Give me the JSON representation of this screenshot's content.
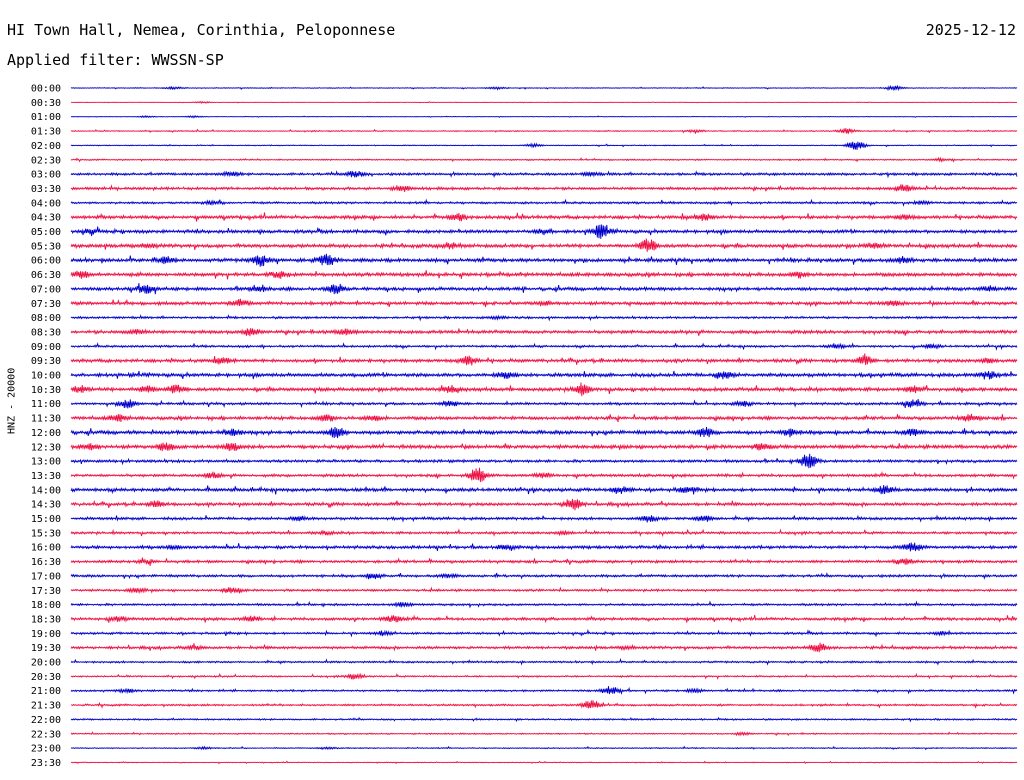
{
  "header": {
    "station": "HI Town Hall, Nemea, Corinthia, Peloponnese",
    "date": "2025-12-12",
    "filter": "Applied filter: WWSSN-SP"
  },
  "channel_label": "HNZ - 20000",
  "colors": {
    "even": "#0000cc",
    "odd": "#ee1144"
  },
  "chart_data": {
    "type": "line",
    "title": "HI Town Hall, Nemea, Corinthia, Peloponnese",
    "subtitle": "Applied filter: WWSSN-SP",
    "ylabel": "HNZ - 20000",
    "y_tick_labels": [
      "00:00",
      "00:30",
      "01:00",
      "01:30",
      "02:00",
      "02:30",
      "03:00",
      "03:30",
      "04:00",
      "04:30",
      "05:00",
      "05:30",
      "06:00",
      "06:30",
      "07:00",
      "07:30",
      "08:00",
      "08:30",
      "09:00",
      "09:30",
      "10:00",
      "10:30",
      "11:00",
      "11:30",
      "12:00",
      "12:30",
      "13:00",
      "13:30",
      "14:00",
      "14:30",
      "15:00",
      "15:30",
      "16:00",
      "16:30",
      "17:00",
      "17:30",
      "18:00",
      "18:30",
      "19:00",
      "19:30",
      "20:00",
      "20:30",
      "21:00",
      "21:30",
      "22:00",
      "22:30",
      "23:00",
      "23:30"
    ],
    "series_colors": [
      "#0000cc",
      "#ee1144"
    ],
    "traces": [
      {
        "label": "00:00",
        "noise": 0.3,
        "events": [
          [
            0.11,
            1.2
          ],
          [
            0.45,
            1.0
          ],
          [
            0.87,
            2.0
          ]
        ]
      },
      {
        "label": "00:30",
        "noise": 0.15,
        "events": [
          [
            0.14,
            0.8
          ]
        ]
      },
      {
        "label": "01:00",
        "noise": 0.2,
        "events": [
          [
            0.08,
            0.8
          ],
          [
            0.13,
            0.8
          ]
        ]
      },
      {
        "label": "01:30",
        "noise": 0.4,
        "events": [
          [
            0.66,
            1.2
          ],
          [
            0.82,
            2.5
          ]
        ]
      },
      {
        "label": "02:00",
        "noise": 0.35,
        "events": [
          [
            0.49,
            1.5
          ],
          [
            0.83,
            5.0
          ]
        ]
      },
      {
        "label": "02:30",
        "noise": 0.5,
        "events": [
          [
            0.92,
            1.2
          ]
        ]
      },
      {
        "label": "03:00",
        "noise": 0.9,
        "events": [
          [
            0.17,
            2.0
          ],
          [
            0.3,
            3.0
          ],
          [
            0.55,
            1.5
          ]
        ]
      },
      {
        "label": "03:30",
        "noise": 1.0,
        "events": [
          [
            0.35,
            2.5
          ],
          [
            0.88,
            3.5
          ]
        ]
      },
      {
        "label": "04:00",
        "noise": 0.8,
        "events": [
          [
            0.15,
            1.5
          ],
          [
            0.9,
            1.5
          ]
        ]
      },
      {
        "label": "04:30",
        "noise": 1.2,
        "events": [
          [
            0.41,
            3.0
          ],
          [
            0.67,
            3.0
          ],
          [
            0.88,
            2.0
          ]
        ]
      },
      {
        "label": "05:00",
        "noise": 1.2,
        "events": [
          [
            0.02,
            2.0
          ],
          [
            0.5,
            2.5
          ],
          [
            0.56,
            6.0
          ]
        ]
      },
      {
        "label": "05:30",
        "noise": 1.3,
        "events": [
          [
            0.08,
            2.0
          ],
          [
            0.4,
            2.5
          ],
          [
            0.61,
            6.0
          ],
          [
            0.85,
            2.0
          ]
        ]
      },
      {
        "label": "06:00",
        "noise": 1.3,
        "events": [
          [
            0.1,
            3.0
          ],
          [
            0.2,
            5.0
          ],
          [
            0.27,
            6.0
          ],
          [
            0.88,
            3.0
          ]
        ]
      },
      {
        "label": "06:30",
        "noise": 1.3,
        "events": [
          [
            0.01,
            3.0
          ],
          [
            0.22,
            3.0
          ],
          [
            0.77,
            2.5
          ]
        ]
      },
      {
        "label": "07:00",
        "noise": 1.2,
        "events": [
          [
            0.08,
            5.0
          ],
          [
            0.2,
            2.0
          ],
          [
            0.28,
            5.0
          ],
          [
            0.97,
            2.0
          ]
        ]
      },
      {
        "label": "07:30",
        "noise": 1.2,
        "events": [
          [
            0.18,
            3.5
          ],
          [
            0.5,
            1.5
          ],
          [
            0.87,
            2.0
          ]
        ]
      },
      {
        "label": "08:00",
        "noise": 0.8,
        "events": [
          [
            0.45,
            1.2
          ]
        ]
      },
      {
        "label": "08:30",
        "noise": 1.2,
        "events": [
          [
            0.07,
            2.0
          ],
          [
            0.19,
            3.0
          ],
          [
            0.29,
            2.5
          ]
        ]
      },
      {
        "label": "09:00",
        "noise": 0.8,
        "events": [
          [
            0.81,
            1.5
          ],
          [
            0.91,
            1.5
          ]
        ]
      },
      {
        "label": "09:30",
        "noise": 1.2,
        "events": [
          [
            0.16,
            2.5
          ],
          [
            0.42,
            4.0
          ],
          [
            0.84,
            4.0
          ],
          [
            0.97,
            2.0
          ]
        ]
      },
      {
        "label": "10:00",
        "noise": 1.3,
        "events": [
          [
            0.46,
            3.0
          ],
          [
            0.69,
            3.5
          ],
          [
            0.97,
            3.5
          ]
        ]
      },
      {
        "label": "10:30",
        "noise": 1.3,
        "events": [
          [
            0.01,
            3.0
          ],
          [
            0.08,
            3.0
          ],
          [
            0.11,
            3.5
          ],
          [
            0.4,
            3.0
          ],
          [
            0.54,
            5.0
          ],
          [
            0.89,
            2.5
          ]
        ]
      },
      {
        "label": "11:00",
        "noise": 0.9,
        "events": [
          [
            0.06,
            4.0
          ],
          [
            0.4,
            3.0
          ],
          [
            0.71,
            2.5
          ],
          [
            0.89,
            3.5
          ]
        ]
      },
      {
        "label": "11:30",
        "noise": 1.2,
        "events": [
          [
            0.05,
            3.0
          ],
          [
            0.27,
            3.0
          ],
          [
            0.32,
            2.5
          ],
          [
            0.95,
            3.0
          ]
        ]
      },
      {
        "label": "12:00",
        "noise": 1.3,
        "events": [
          [
            0.17,
            4.0
          ],
          [
            0.28,
            5.0
          ],
          [
            0.67,
            4.0
          ],
          [
            0.76,
            3.0
          ],
          [
            0.89,
            3.0
          ]
        ]
      },
      {
        "label": "12:30",
        "noise": 1.3,
        "events": [
          [
            0.02,
            2.5
          ],
          [
            0.1,
            3.5
          ],
          [
            0.17,
            3.5
          ],
          [
            0.73,
            3.0
          ]
        ]
      },
      {
        "label": "13:00",
        "noise": 1.0,
        "events": [
          [
            0.78,
            7.0
          ]
        ]
      },
      {
        "label": "13:30",
        "noise": 1.0,
        "events": [
          [
            0.15,
            2.5
          ],
          [
            0.43,
            8.0
          ],
          [
            0.5,
            2.0
          ]
        ]
      },
      {
        "label": "14:00",
        "noise": 1.2,
        "events": [
          [
            0.58,
            3.0
          ],
          [
            0.65,
            2.5
          ],
          [
            0.86,
            4.0
          ]
        ]
      },
      {
        "label": "14:30",
        "noise": 1.1,
        "events": [
          [
            0.09,
            2.5
          ],
          [
            0.53,
            6.0
          ]
        ]
      },
      {
        "label": "15:00",
        "noise": 1.0,
        "events": [
          [
            0.24,
            2.0
          ],
          [
            0.61,
            3.0
          ],
          [
            0.67,
            3.0
          ]
        ]
      },
      {
        "label": "15:30",
        "noise": 0.9,
        "events": [
          [
            0.27,
            1.5
          ],
          [
            0.52,
            1.5
          ]
        ]
      },
      {
        "label": "16:00",
        "noise": 1.1,
        "events": [
          [
            0.11,
            2.0
          ],
          [
            0.46,
            2.0
          ],
          [
            0.89,
            4.0
          ]
        ]
      },
      {
        "label": "16:30",
        "noise": 1.0,
        "events": [
          [
            0.08,
            1.5
          ],
          [
            0.88,
            3.0
          ]
        ]
      },
      {
        "label": "17:00",
        "noise": 0.9,
        "events": [
          [
            0.32,
            2.5
          ],
          [
            0.4,
            1.5
          ]
        ]
      },
      {
        "label": "17:30",
        "noise": 0.8,
        "events": [
          [
            0.07,
            2.0
          ],
          [
            0.17,
            3.0
          ]
        ]
      },
      {
        "label": "18:00",
        "noise": 0.8,
        "events": [
          [
            0.35,
            2.0
          ]
        ]
      },
      {
        "label": "18:30",
        "noise": 1.0,
        "events": [
          [
            0.05,
            2.0
          ],
          [
            0.19,
            2.0
          ],
          [
            0.34,
            3.5
          ]
        ]
      },
      {
        "label": "19:00",
        "noise": 0.8,
        "events": [
          [
            0.33,
            2.0
          ],
          [
            0.92,
            1.5
          ]
        ]
      },
      {
        "label": "19:30",
        "noise": 1.0,
        "events": [
          [
            0.13,
            1.5
          ],
          [
            0.59,
            1.5
          ],
          [
            0.79,
            4.0
          ]
        ]
      },
      {
        "label": "20:00",
        "noise": 0.7,
        "events": []
      },
      {
        "label": "20:30",
        "noise": 0.6,
        "events": [
          [
            0.3,
            2.5
          ]
        ]
      },
      {
        "label": "21:00",
        "noise": 0.7,
        "events": [
          [
            0.06,
            1.5
          ],
          [
            0.57,
            4.0
          ],
          [
            0.66,
            1.5
          ]
        ]
      },
      {
        "label": "21:30",
        "noise": 0.7,
        "events": [
          [
            0.55,
            5.0
          ]
        ]
      },
      {
        "label": "22:00",
        "noise": 0.6,
        "events": []
      },
      {
        "label": "22:30",
        "noise": 0.5,
        "events": [
          [
            0.71,
            1.0
          ]
        ]
      },
      {
        "label": "23:00",
        "noise": 0.4,
        "events": [
          [
            0.14,
            1.0
          ],
          [
            0.27,
            1.0
          ]
        ]
      },
      {
        "label": "23:30",
        "noise": 0.3,
        "events": []
      }
    ]
  }
}
